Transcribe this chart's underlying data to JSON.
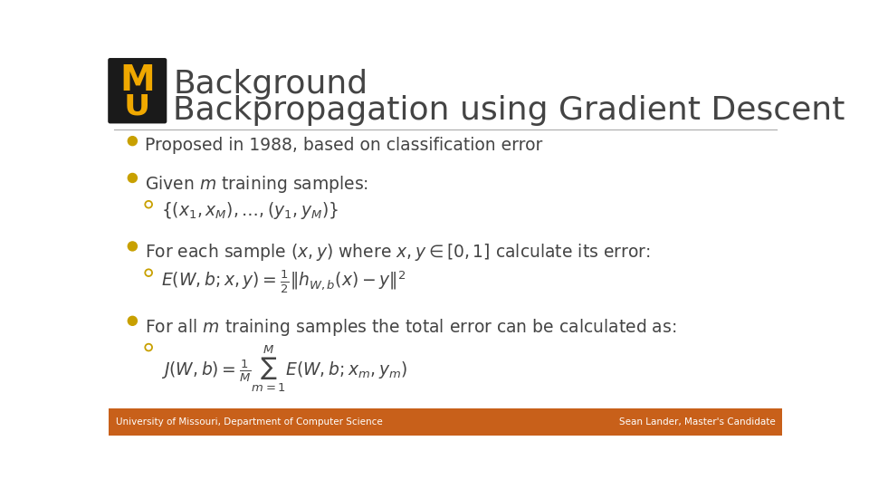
{
  "background_color": "#ffffff",
  "footer_color": "#c8601a",
  "title_line1": "Background",
  "title_line2": "Backpropagation using Gradient Descent",
  "title_color": "#444444",
  "bullet_color": "#c8a000",
  "text_color": "#444444",
  "footer_text_left": "University of Missouri, Department of Computer Science",
  "footer_text_right": "Sean Lander, Master's Candidate",
  "footer_text_color": "#ffffff",
  "logo_black": "#1a1a1a",
  "logo_gold": "#f0a800",
  "divider_color": "#aaaaaa",
  "bullet1": "Proposed in 1988, based on classification error",
  "bullet2_text": "Given $m$ training samples:",
  "bullet2_sub": "$\\{(x_1, x_M), \\ldots, (y_1, y_M)\\}$",
  "bullet3_text": "For each sample $(x, y)$ where $x, y \\in [0,1]$ calculate its error:",
  "bullet3_sub": "$E(W, b; x, y) = \\frac{1}{2}\\|h_{W,b}(x) - y\\|^2$",
  "bullet4_text": "For all $m$ training samples the total error can be calculated as:",
  "bullet4_sub": "$J(W, b) = \\frac{1}{M}\\sum_{m=1}^{M} E(W, b; x_m, y_m)$"
}
